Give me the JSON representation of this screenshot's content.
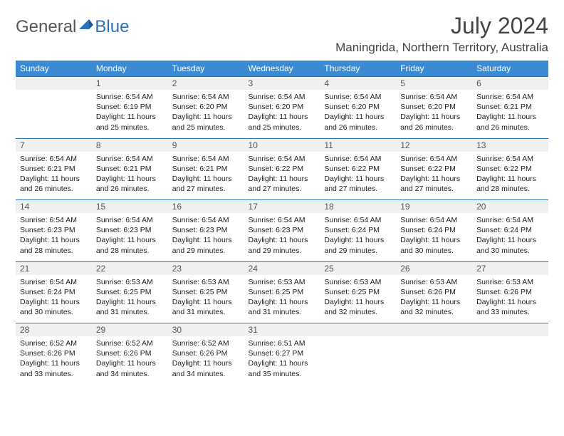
{
  "header": {
    "logo_general": "General",
    "logo_blue": "Blue",
    "month_title": "July 2024",
    "location": "Maningrida, Northern Territory, Australia"
  },
  "colors": {
    "header_bg": "#3b8bd4",
    "row_border": "#2a71b8",
    "daynum_bg": "#eef0f2",
    "logo_general": "#555555",
    "logo_blue": "#2a71b8"
  },
  "day_headers": [
    "Sunday",
    "Monday",
    "Tuesday",
    "Wednesday",
    "Thursday",
    "Friday",
    "Saturday"
  ],
  "weeks": [
    {
      "nums": [
        "",
        "1",
        "2",
        "3",
        "4",
        "5",
        "6"
      ],
      "cells": [
        [],
        [
          "Sunrise: 6:54 AM",
          "Sunset: 6:19 PM",
          "Daylight: 11 hours",
          "and 25 minutes."
        ],
        [
          "Sunrise: 6:54 AM",
          "Sunset: 6:20 PM",
          "Daylight: 11 hours",
          "and 25 minutes."
        ],
        [
          "Sunrise: 6:54 AM",
          "Sunset: 6:20 PM",
          "Daylight: 11 hours",
          "and 25 minutes."
        ],
        [
          "Sunrise: 6:54 AM",
          "Sunset: 6:20 PM",
          "Daylight: 11 hours",
          "and 26 minutes."
        ],
        [
          "Sunrise: 6:54 AM",
          "Sunset: 6:20 PM",
          "Daylight: 11 hours",
          "and 26 minutes."
        ],
        [
          "Sunrise: 6:54 AM",
          "Sunset: 6:21 PM",
          "Daylight: 11 hours",
          "and 26 minutes."
        ]
      ]
    },
    {
      "nums": [
        "7",
        "8",
        "9",
        "10",
        "11",
        "12",
        "13"
      ],
      "cells": [
        [
          "Sunrise: 6:54 AM",
          "Sunset: 6:21 PM",
          "Daylight: 11 hours",
          "and 26 minutes."
        ],
        [
          "Sunrise: 6:54 AM",
          "Sunset: 6:21 PM",
          "Daylight: 11 hours",
          "and 26 minutes."
        ],
        [
          "Sunrise: 6:54 AM",
          "Sunset: 6:21 PM",
          "Daylight: 11 hours",
          "and 27 minutes."
        ],
        [
          "Sunrise: 6:54 AM",
          "Sunset: 6:22 PM",
          "Daylight: 11 hours",
          "and 27 minutes."
        ],
        [
          "Sunrise: 6:54 AM",
          "Sunset: 6:22 PM",
          "Daylight: 11 hours",
          "and 27 minutes."
        ],
        [
          "Sunrise: 6:54 AM",
          "Sunset: 6:22 PM",
          "Daylight: 11 hours",
          "and 27 minutes."
        ],
        [
          "Sunrise: 6:54 AM",
          "Sunset: 6:22 PM",
          "Daylight: 11 hours",
          "and 28 minutes."
        ]
      ]
    },
    {
      "nums": [
        "14",
        "15",
        "16",
        "17",
        "18",
        "19",
        "20"
      ],
      "cells": [
        [
          "Sunrise: 6:54 AM",
          "Sunset: 6:23 PM",
          "Daylight: 11 hours",
          "and 28 minutes."
        ],
        [
          "Sunrise: 6:54 AM",
          "Sunset: 6:23 PM",
          "Daylight: 11 hours",
          "and 28 minutes."
        ],
        [
          "Sunrise: 6:54 AM",
          "Sunset: 6:23 PM",
          "Daylight: 11 hours",
          "and 29 minutes."
        ],
        [
          "Sunrise: 6:54 AM",
          "Sunset: 6:23 PM",
          "Daylight: 11 hours",
          "and 29 minutes."
        ],
        [
          "Sunrise: 6:54 AM",
          "Sunset: 6:24 PM",
          "Daylight: 11 hours",
          "and 29 minutes."
        ],
        [
          "Sunrise: 6:54 AM",
          "Sunset: 6:24 PM",
          "Daylight: 11 hours",
          "and 30 minutes."
        ],
        [
          "Sunrise: 6:54 AM",
          "Sunset: 6:24 PM",
          "Daylight: 11 hours",
          "and 30 minutes."
        ]
      ]
    },
    {
      "nums": [
        "21",
        "22",
        "23",
        "24",
        "25",
        "26",
        "27"
      ],
      "cells": [
        [
          "Sunrise: 6:54 AM",
          "Sunset: 6:24 PM",
          "Daylight: 11 hours",
          "and 30 minutes."
        ],
        [
          "Sunrise: 6:53 AM",
          "Sunset: 6:25 PM",
          "Daylight: 11 hours",
          "and 31 minutes."
        ],
        [
          "Sunrise: 6:53 AM",
          "Sunset: 6:25 PM",
          "Daylight: 11 hours",
          "and 31 minutes."
        ],
        [
          "Sunrise: 6:53 AM",
          "Sunset: 6:25 PM",
          "Daylight: 11 hours",
          "and 31 minutes."
        ],
        [
          "Sunrise: 6:53 AM",
          "Sunset: 6:25 PM",
          "Daylight: 11 hours",
          "and 32 minutes."
        ],
        [
          "Sunrise: 6:53 AM",
          "Sunset: 6:26 PM",
          "Daylight: 11 hours",
          "and 32 minutes."
        ],
        [
          "Sunrise: 6:53 AM",
          "Sunset: 6:26 PM",
          "Daylight: 11 hours",
          "and 33 minutes."
        ]
      ]
    },
    {
      "nums": [
        "28",
        "29",
        "30",
        "31",
        "",
        "",
        ""
      ],
      "cells": [
        [
          "Sunrise: 6:52 AM",
          "Sunset: 6:26 PM",
          "Daylight: 11 hours",
          "and 33 minutes."
        ],
        [
          "Sunrise: 6:52 AM",
          "Sunset: 6:26 PM",
          "Daylight: 11 hours",
          "and 34 minutes."
        ],
        [
          "Sunrise: 6:52 AM",
          "Sunset: 6:26 PM",
          "Daylight: 11 hours",
          "and 34 minutes."
        ],
        [
          "Sunrise: 6:51 AM",
          "Sunset: 6:27 PM",
          "Daylight: 11 hours",
          "and 35 minutes."
        ],
        [],
        [],
        []
      ]
    }
  ]
}
